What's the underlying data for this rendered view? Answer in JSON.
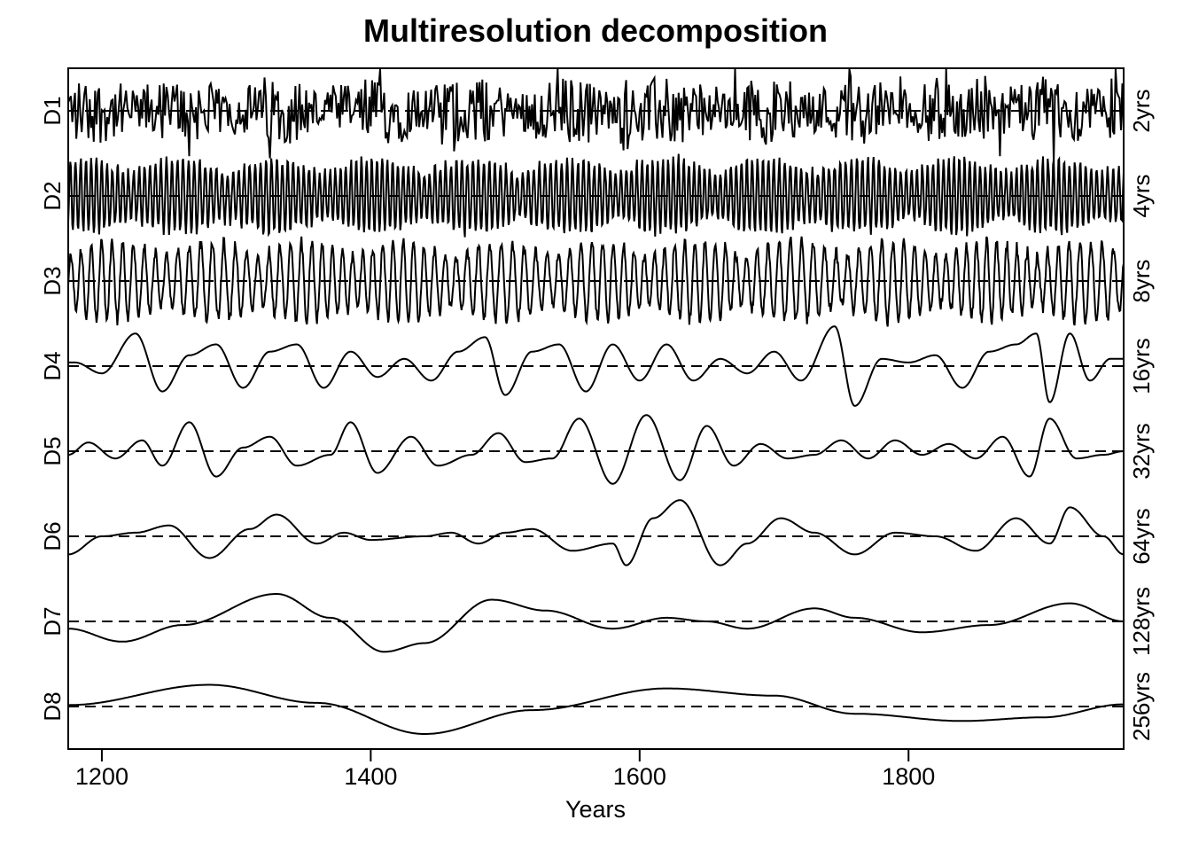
{
  "chart_data": {
    "type": "line",
    "title": "Multiresolution decomposition",
    "xlabel": "Years",
    "xlim": [
      1175,
      1960
    ],
    "xticks": [
      1200,
      1400,
      1600,
      1800
    ],
    "grid": false,
    "reference_line": "dashed zero line in each panel",
    "series": [
      {
        "name": "D1",
        "period_label": "2yrs",
        "period": 2,
        "amplitude": 0.55,
        "approx_values": []
      },
      {
        "name": "D2",
        "period_label": "4yrs",
        "period": 4,
        "amplitude": 0.6,
        "approx_values": []
      },
      {
        "name": "D3",
        "period_label": "8yrs",
        "period": 8,
        "amplitude": 0.65,
        "approx_values": []
      },
      {
        "name": "D4",
        "period_label": "16yrs",
        "period": 16,
        "amplitude": 0.55,
        "approx_values": [
          [
            1180,
            0.05
          ],
          [
            1200,
            -0.1
          ],
          [
            1225,
            0.45
          ],
          [
            1245,
            -0.35
          ],
          [
            1265,
            0.15
          ],
          [
            1285,
            0.3
          ],
          [
            1305,
            -0.3
          ],
          [
            1325,
            0.2
          ],
          [
            1345,
            0.3
          ],
          [
            1365,
            -0.3
          ],
          [
            1385,
            0.2
          ],
          [
            1405,
            -0.15
          ],
          [
            1425,
            0.1
          ],
          [
            1445,
            -0.2
          ],
          [
            1465,
            0.2
          ],
          [
            1485,
            0.4
          ],
          [
            1500,
            -0.4
          ],
          [
            1520,
            0.2
          ],
          [
            1540,
            0.3
          ],
          [
            1560,
            -0.35
          ],
          [
            1580,
            0.3
          ],
          [
            1600,
            -0.2
          ],
          [
            1620,
            0.3
          ],
          [
            1640,
            -0.2
          ],
          [
            1660,
            0.1
          ],
          [
            1680,
            -0.1
          ],
          [
            1700,
            0.2
          ],
          [
            1720,
            -0.2
          ],
          [
            1745,
            0.55
          ],
          [
            1760,
            -0.55
          ],
          [
            1780,
            0.1
          ],
          [
            1800,
            0.05
          ],
          [
            1820,
            0.15
          ],
          [
            1840,
            -0.3
          ],
          [
            1860,
            0.2
          ],
          [
            1880,
            0.3
          ],
          [
            1895,
            0.45
          ],
          [
            1905,
            -0.5
          ],
          [
            1920,
            0.45
          ],
          [
            1935,
            -0.2
          ],
          [
            1950,
            0.1
          ]
        ]
      },
      {
        "name": "D5",
        "period_label": "32yrs",
        "period": 32,
        "amplitude": 0.5,
        "approx_values": [
          [
            1175,
            -0.05
          ],
          [
            1190,
            0.12
          ],
          [
            1210,
            -0.1
          ],
          [
            1230,
            0.15
          ],
          [
            1245,
            -0.2
          ],
          [
            1265,
            0.4
          ],
          [
            1285,
            -0.35
          ],
          [
            1305,
            0.05
          ],
          [
            1325,
            0.2
          ],
          [
            1345,
            -0.2
          ],
          [
            1370,
            -0.05
          ],
          [
            1385,
            0.4
          ],
          [
            1405,
            -0.3
          ],
          [
            1430,
            0.2
          ],
          [
            1450,
            -0.2
          ],
          [
            1475,
            -0.05
          ],
          [
            1495,
            0.25
          ],
          [
            1515,
            -0.15
          ],
          [
            1535,
            -0.1
          ],
          [
            1555,
            0.45
          ],
          [
            1580,
            -0.45
          ],
          [
            1605,
            0.5
          ],
          [
            1630,
            -0.4
          ],
          [
            1650,
            0.35
          ],
          [
            1670,
            -0.2
          ],
          [
            1690,
            0.1
          ],
          [
            1710,
            -0.1
          ],
          [
            1730,
            -0.05
          ],
          [
            1750,
            0.15
          ],
          [
            1770,
            -0.1
          ],
          [
            1790,
            0.15
          ],
          [
            1810,
            -0.05
          ],
          [
            1830,
            0.1
          ],
          [
            1850,
            -0.1
          ],
          [
            1870,
            0.2
          ],
          [
            1890,
            -0.35
          ],
          [
            1905,
            0.45
          ],
          [
            1925,
            -0.1
          ],
          [
            1945,
            -0.05
          ],
          [
            1960,
            0.0
          ]
        ]
      },
      {
        "name": "D6",
        "period_label": "64yrs",
        "period": 64,
        "amplitude": 0.5,
        "approx_values": [
          [
            1175,
            -0.25
          ],
          [
            1200,
            0.0
          ],
          [
            1225,
            0.05
          ],
          [
            1250,
            0.15
          ],
          [
            1280,
            -0.3
          ],
          [
            1310,
            0.1
          ],
          [
            1330,
            0.3
          ],
          [
            1360,
            -0.1
          ],
          [
            1380,
            0.05
          ],
          [
            1400,
            -0.05
          ],
          [
            1440,
            0.0
          ],
          [
            1460,
            0.05
          ],
          [
            1480,
            -0.1
          ],
          [
            1500,
            0.05
          ],
          [
            1520,
            0.1
          ],
          [
            1550,
            -0.2
          ],
          [
            1580,
            -0.1
          ],
          [
            1590,
            -0.4
          ],
          [
            1610,
            0.25
          ],
          [
            1630,
            0.5
          ],
          [
            1660,
            -0.4
          ],
          [
            1680,
            -0.1
          ],
          [
            1705,
            0.25
          ],
          [
            1730,
            0.05
          ],
          [
            1760,
            -0.25
          ],
          [
            1790,
            0.05
          ],
          [
            1820,
            0.0
          ],
          [
            1850,
            -0.2
          ],
          [
            1880,
            0.25
          ],
          [
            1905,
            -0.1
          ],
          [
            1920,
            0.4
          ],
          [
            1945,
            0.0
          ],
          [
            1960,
            -0.25
          ]
        ]
      },
      {
        "name": "D7",
        "period_label": "128yrs",
        "period": 128,
        "amplitude": 0.42,
        "approx_values": [
          [
            1175,
            -0.1
          ],
          [
            1215,
            -0.28
          ],
          [
            1260,
            -0.05
          ],
          [
            1330,
            0.38
          ],
          [
            1370,
            0.05
          ],
          [
            1410,
            -0.42
          ],
          [
            1440,
            -0.3
          ],
          [
            1490,
            0.3
          ],
          [
            1530,
            0.15
          ],
          [
            1580,
            -0.1
          ],
          [
            1620,
            0.05
          ],
          [
            1650,
            0.0
          ],
          [
            1680,
            -0.1
          ],
          [
            1730,
            0.18
          ],
          [
            1760,
            0.05
          ],
          [
            1810,
            -0.15
          ],
          [
            1860,
            -0.05
          ],
          [
            1920,
            0.25
          ],
          [
            1960,
            0.0
          ]
        ]
      },
      {
        "name": "D8",
        "period_label": "256yrs",
        "period": 256,
        "amplitude": 0.4,
        "approx_values": [
          [
            1175,
            0.02
          ],
          [
            1280,
            0.3
          ],
          [
            1360,
            0.05
          ],
          [
            1440,
            -0.38
          ],
          [
            1520,
            -0.05
          ],
          [
            1620,
            0.25
          ],
          [
            1700,
            0.15
          ],
          [
            1760,
            -0.1
          ],
          [
            1840,
            -0.2
          ],
          [
            1900,
            -0.15
          ],
          [
            1960,
            0.03
          ]
        ]
      }
    ]
  }
}
